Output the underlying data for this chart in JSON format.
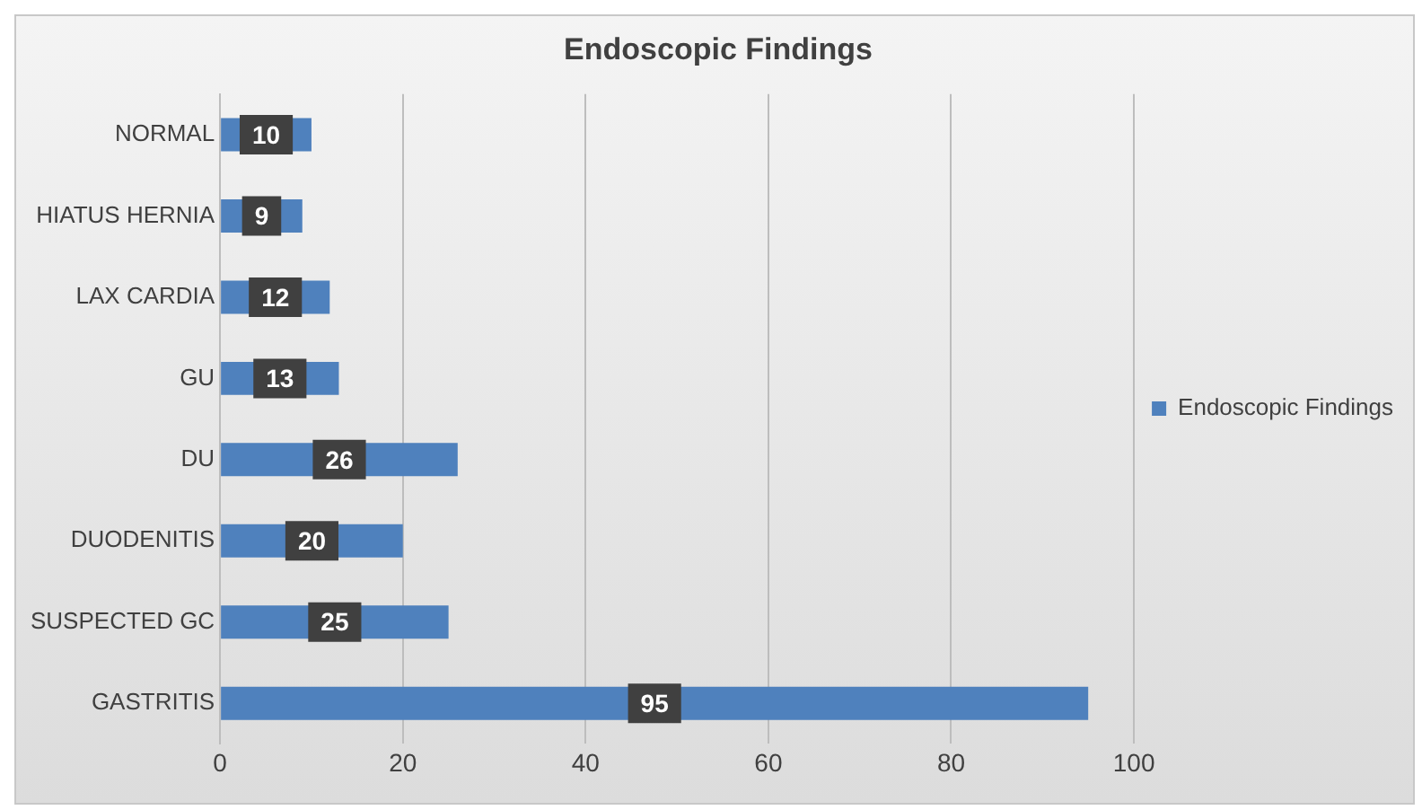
{
  "chart_data": {
    "type": "bar",
    "orientation": "horizontal",
    "title": "Endoscopic Findings",
    "categories": [
      "NORMAL",
      "HIATUS HERNIA",
      "LAX CARDIA",
      "GU",
      "DU",
      "DUODENITIS",
      "SUSPECTED GC",
      "GASTRITIS"
    ],
    "series": [
      {
        "name": "Endoscopic Findings",
        "color": "#4f81bd",
        "values": [
          10,
          9,
          12,
          13,
          26,
          20,
          25,
          95
        ]
      }
    ],
    "xlim": [
      0,
      100
    ],
    "xticks": [
      0,
      20,
      40,
      60,
      80,
      100
    ],
    "grid": "x",
    "legend": "right",
    "data_labels": true
  }
}
